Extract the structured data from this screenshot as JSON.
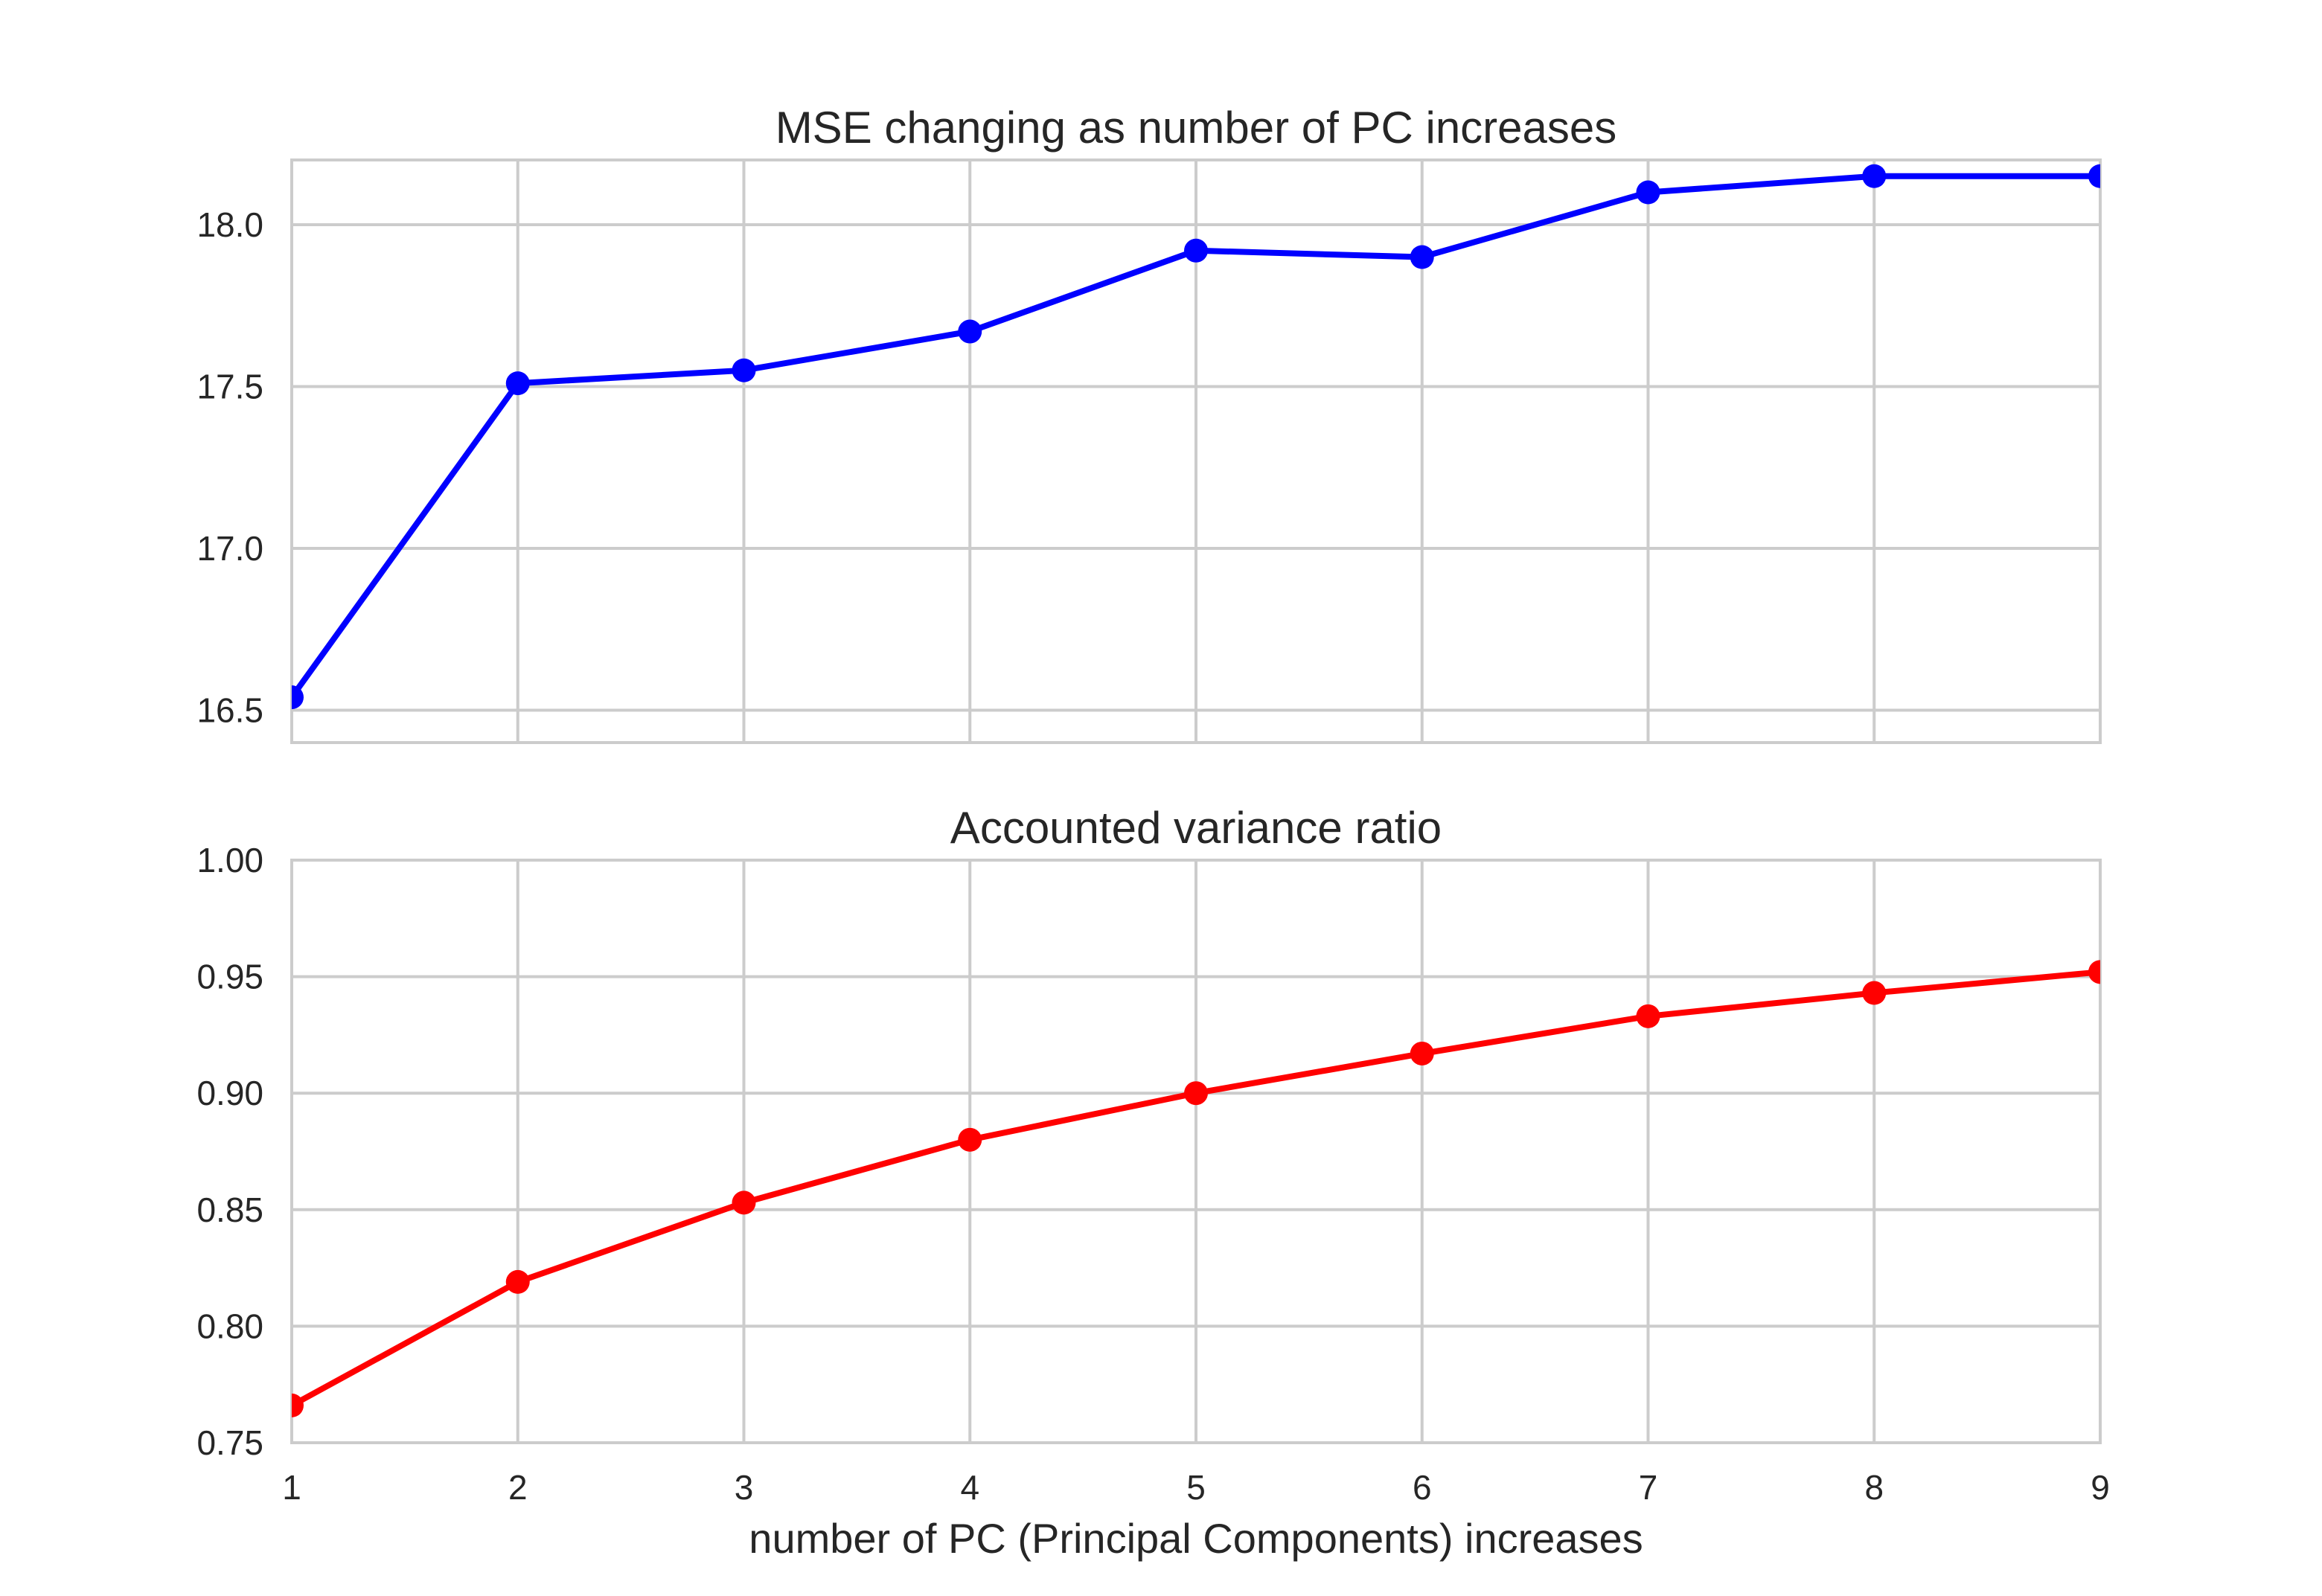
{
  "figure": {
    "xlabel": "number of PC (Principal Components) increases"
  },
  "chart_data": [
    {
      "type": "line",
      "title": "MSE changing as number of PC increases",
      "xlabel": "",
      "ylabel": "",
      "x": [
        1,
        2,
        3,
        4,
        5,
        6,
        7,
        8,
        9
      ],
      "xlim": [
        1,
        9
      ],
      "ylim": [
        16.4,
        18.2
      ],
      "xticks": [
        1,
        2,
        3,
        4,
        5,
        6,
        7,
        8,
        9
      ],
      "yticks": [
        16.5,
        17.0,
        17.5,
        18.0
      ],
      "ytick_labels": [
        "16.5",
        "17.0",
        "17.5",
        "18.0"
      ],
      "show_xtick_labels": false,
      "grid": true,
      "series": [
        {
          "values": [
            16.54,
            17.51,
            17.55,
            17.67,
            17.92,
            17.9,
            18.1,
            18.15,
            18.15
          ],
          "color": "#0000ff"
        }
      ]
    },
    {
      "type": "line",
      "title": "Accounted variance ratio",
      "xlabel": "number of PC (Principal Components) increases",
      "ylabel": "",
      "x": [
        1,
        2,
        3,
        4,
        5,
        6,
        7,
        8,
        9
      ],
      "xlim": [
        1,
        9
      ],
      "ylim": [
        0.75,
        1.0
      ],
      "xticks": [
        1,
        2,
        3,
        4,
        5,
        6,
        7,
        8,
        9
      ],
      "xtick_labels": [
        "1",
        "2",
        "3",
        "4",
        "5",
        "6",
        "7",
        "8",
        "9"
      ],
      "yticks": [
        0.75,
        0.8,
        0.85,
        0.9,
        0.95,
        1.0
      ],
      "ytick_labels": [
        "0.75",
        "0.80",
        "0.85",
        "0.90",
        "0.95",
        "1.00"
      ],
      "show_xtick_labels": true,
      "grid": true,
      "series": [
        {
          "values": [
            0.766,
            0.819,
            0.853,
            0.88,
            0.9,
            0.917,
            0.933,
            0.943,
            0.952
          ],
          "color": "#ff0000"
        }
      ]
    }
  ]
}
